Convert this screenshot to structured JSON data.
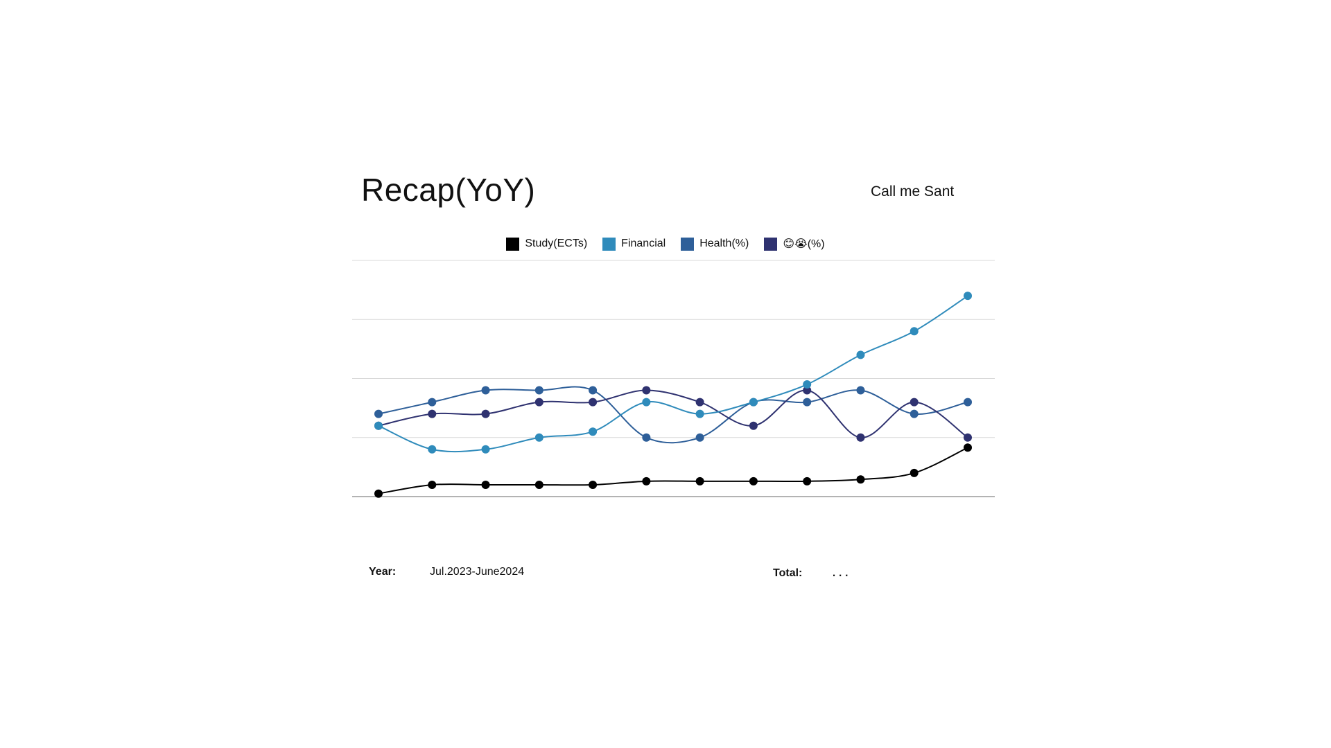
{
  "header": {
    "title": "Recap(YoY)",
    "author": "Call me Sant"
  },
  "footer": {
    "year_label": "Year:",
    "year_value": "Jul.2023-June2024",
    "total_label": "Total:",
    "total_value": "..."
  },
  "chart_data": {
    "type": "line",
    "title": "",
    "xlabel": "",
    "ylabel": "",
    "ylim": [
      0,
      4
    ],
    "grid": true,
    "legend_position": "top-center",
    "x": [
      1,
      2,
      3,
      4,
      5,
      6,
      7,
      8,
      9,
      10,
      11,
      12
    ],
    "series": [
      {
        "name": "Study(ECTs)",
        "color": "#000000",
        "values": [
          0.05,
          0.2,
          0.2,
          0.2,
          0.2,
          0.26,
          0.26,
          0.26,
          0.26,
          0.29,
          0.4,
          0.83
        ]
      },
      {
        "name": "Financial",
        "color": "#2f8bbb",
        "values": [
          1.2,
          0.8,
          0.8,
          1.0,
          1.1,
          1.6,
          1.4,
          1.6,
          1.9,
          2.4,
          2.8,
          3.4
        ]
      },
      {
        "name": "Health(%)",
        "color": "#2e5f99",
        "values": [
          1.4,
          1.6,
          1.8,
          1.8,
          1.8,
          1.0,
          1.0,
          1.6,
          1.6,
          1.8,
          1.4,
          1.6
        ]
      },
      {
        "name": "😊😭(%)",
        "color": "#2f3270",
        "values": [
          1.2,
          1.4,
          1.4,
          1.6,
          1.6,
          1.8,
          1.6,
          1.2,
          1.8,
          1.0,
          1.6,
          1.0
        ]
      }
    ]
  }
}
